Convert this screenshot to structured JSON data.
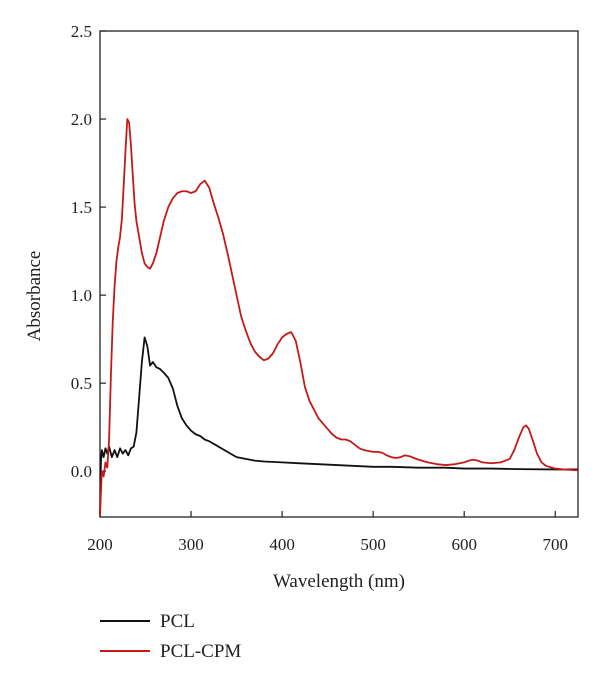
{
  "chart_data": {
    "type": "line",
    "xlabel": "Wavelength (nm)",
    "ylabel": "Absorbance",
    "xlim": [
      200,
      725
    ],
    "ylim": [
      -0.26,
      2.5
    ],
    "xticks": [
      200,
      300,
      400,
      500,
      600,
      700
    ],
    "yticks": [
      0.0,
      0.5,
      1.0,
      1.5,
      2.0,
      2.5
    ],
    "xtick_labels": [
      "200",
      "300",
      "400",
      "500",
      "600",
      "700"
    ],
    "ytick_labels": [
      "0.0",
      "0.5",
      "1.0",
      "1.5",
      "2.0",
      "2.5"
    ],
    "grid": false,
    "legend_position": "below",
    "series": [
      {
        "name": "PCL",
        "color": "#111111",
        "points": [
          [
            200,
            -0.25
          ],
          [
            201,
            0.05
          ],
          [
            202,
            0.12
          ],
          [
            204,
            0.08
          ],
          [
            206,
            0.13
          ],
          [
            208,
            0.1
          ],
          [
            210,
            0.14
          ],
          [
            213,
            0.08
          ],
          [
            216,
            0.12
          ],
          [
            219,
            0.08
          ],
          [
            222,
            0.13
          ],
          [
            225,
            0.1
          ],
          [
            228,
            0.12
          ],
          [
            231,
            0.09
          ],
          [
            234,
            0.13
          ],
          [
            237,
            0.14
          ],
          [
            240,
            0.22
          ],
          [
            243,
            0.42
          ],
          [
            246,
            0.62
          ],
          [
            249,
            0.76
          ],
          [
            252,
            0.71
          ],
          [
            255,
            0.6
          ],
          [
            258,
            0.62
          ],
          [
            262,
            0.59
          ],
          [
            266,
            0.58
          ],
          [
            270,
            0.56
          ],
          [
            275,
            0.53
          ],
          [
            280,
            0.47
          ],
          [
            285,
            0.37
          ],
          [
            290,
            0.3
          ],
          [
            295,
            0.26
          ],
          [
            300,
            0.23
          ],
          [
            305,
            0.21
          ],
          [
            310,
            0.2
          ],
          [
            315,
            0.18
          ],
          [
            320,
            0.17
          ],
          [
            330,
            0.14
          ],
          [
            340,
            0.11
          ],
          [
            350,
            0.08
          ],
          [
            360,
            0.07
          ],
          [
            370,
            0.06
          ],
          [
            380,
            0.055
          ],
          [
            400,
            0.05
          ],
          [
            420,
            0.045
          ],
          [
            440,
            0.04
          ],
          [
            460,
            0.035
          ],
          [
            480,
            0.03
          ],
          [
            500,
            0.025
          ],
          [
            520,
            0.025
          ],
          [
            550,
            0.02
          ],
          [
            580,
            0.02
          ],
          [
            600,
            0.015
          ],
          [
            630,
            0.015
          ],
          [
            660,
            0.012
          ],
          [
            700,
            0.01
          ],
          [
            725,
            0.01
          ]
        ]
      },
      {
        "name": "PCL-CPM",
        "color": "#c41a1a",
        "points": [
          [
            200,
            -0.25
          ],
          [
            202,
            0.0
          ],
          [
            204,
            -0.03
          ],
          [
            206,
            0.05
          ],
          [
            208,
            0.02
          ],
          [
            210,
            0.18
          ],
          [
            212,
            0.55
          ],
          [
            214,
            0.85
          ],
          [
            216,
            1.05
          ],
          [
            218,
            1.19
          ],
          [
            220,
            1.27
          ],
          [
            222,
            1.33
          ],
          [
            224,
            1.43
          ],
          [
            226,
            1.62
          ],
          [
            228,
            1.82
          ],
          [
            230,
            2.0
          ],
          [
            232,
            1.98
          ],
          [
            234,
            1.85
          ],
          [
            236,
            1.68
          ],
          [
            238,
            1.52
          ],
          [
            240,
            1.42
          ],
          [
            243,
            1.33
          ],
          [
            246,
            1.24
          ],
          [
            249,
            1.18
          ],
          [
            252,
            1.16
          ],
          [
            255,
            1.15
          ],
          [
            258,
            1.18
          ],
          [
            262,
            1.24
          ],
          [
            266,
            1.33
          ],
          [
            270,
            1.42
          ],
          [
            275,
            1.5
          ],
          [
            280,
            1.55
          ],
          [
            285,
            1.58
          ],
          [
            290,
            1.59
          ],
          [
            295,
            1.59
          ],
          [
            300,
            1.58
          ],
          [
            305,
            1.59
          ],
          [
            310,
            1.63
          ],
          [
            315,
            1.65
          ],
          [
            320,
            1.61
          ],
          [
            325,
            1.52
          ],
          [
            330,
            1.44
          ],
          [
            335,
            1.35
          ],
          [
            340,
            1.24
          ],
          [
            345,
            1.12
          ],
          [
            350,
            1.0
          ],
          [
            355,
            0.88
          ],
          [
            360,
            0.8
          ],
          [
            365,
            0.73
          ],
          [
            370,
            0.68
          ],
          [
            375,
            0.65
          ],
          [
            380,
            0.63
          ],
          [
            385,
            0.64
          ],
          [
            390,
            0.67
          ],
          [
            395,
            0.72
          ],
          [
            400,
            0.76
          ],
          [
            405,
            0.78
          ],
          [
            410,
            0.79
          ],
          [
            415,
            0.74
          ],
          [
            420,
            0.62
          ],
          [
            425,
            0.48
          ],
          [
            430,
            0.4
          ],
          [
            435,
            0.35
          ],
          [
            440,
            0.3
          ],
          [
            445,
            0.27
          ],
          [
            450,
            0.24
          ],
          [
            455,
            0.21
          ],
          [
            460,
            0.19
          ],
          [
            465,
            0.18
          ],
          [
            470,
            0.18
          ],
          [
            475,
            0.17
          ],
          [
            480,
            0.15
          ],
          [
            485,
            0.13
          ],
          [
            490,
            0.12
          ],
          [
            495,
            0.115
          ],
          [
            500,
            0.11
          ],
          [
            505,
            0.11
          ],
          [
            510,
            0.105
          ],
          [
            515,
            0.09
          ],
          [
            520,
            0.08
          ],
          [
            525,
            0.075
          ],
          [
            530,
            0.08
          ],
          [
            535,
            0.09
          ],
          [
            540,
            0.085
          ],
          [
            545,
            0.075
          ],
          [
            550,
            0.065
          ],
          [
            560,
            0.05
          ],
          [
            570,
            0.04
          ],
          [
            580,
            0.035
          ],
          [
            590,
            0.04
          ],
          [
            600,
            0.05
          ],
          [
            605,
            0.06
          ],
          [
            610,
            0.065
          ],
          [
            615,
            0.06
          ],
          [
            620,
            0.05
          ],
          [
            630,
            0.045
          ],
          [
            640,
            0.05
          ],
          [
            650,
            0.07
          ],
          [
            655,
            0.12
          ],
          [
            660,
            0.19
          ],
          [
            665,
            0.25
          ],
          [
            668,
            0.26
          ],
          [
            671,
            0.24
          ],
          [
            675,
            0.18
          ],
          [
            680,
            0.1
          ],
          [
            685,
            0.05
          ],
          [
            690,
            0.03
          ],
          [
            700,
            0.015
          ],
          [
            710,
            0.01
          ],
          [
            725,
            0.005
          ]
        ]
      }
    ]
  }
}
